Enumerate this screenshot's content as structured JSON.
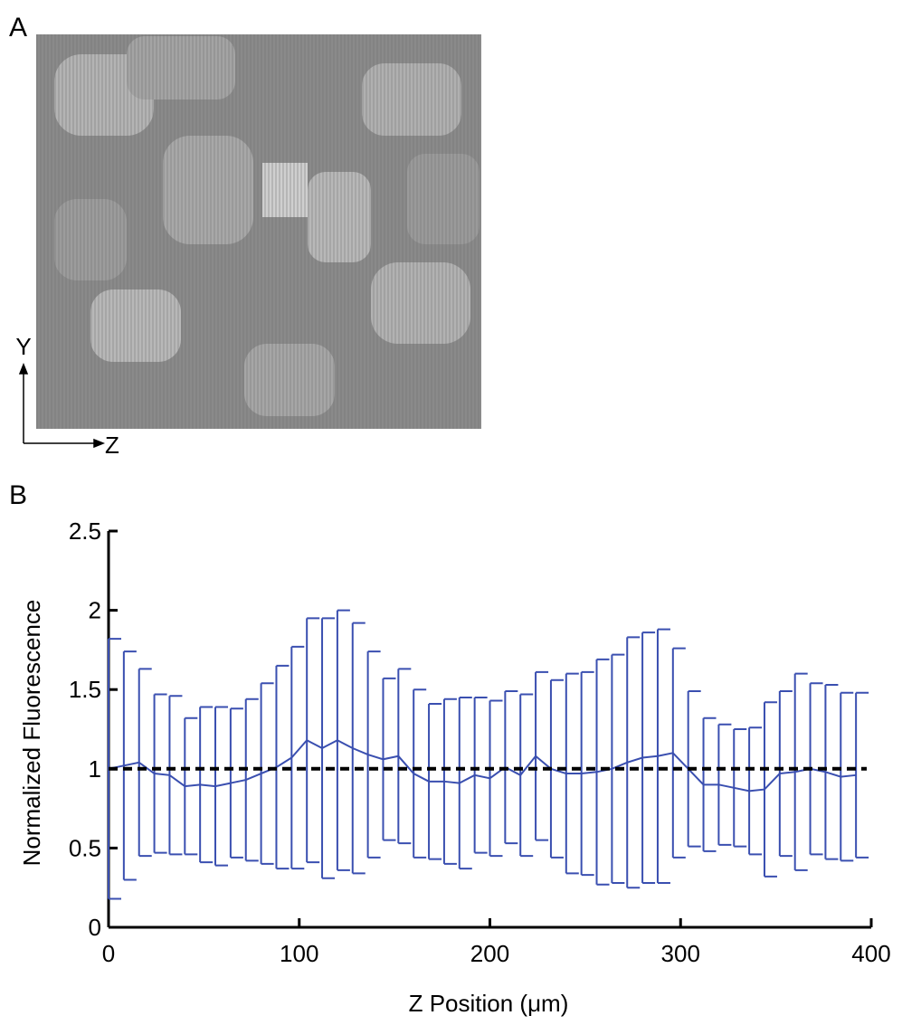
{
  "panel_labels": [
    "A",
    "B"
  ],
  "image": {
    "axis_y": "Y",
    "axis_z": "Z"
  },
  "chart_data": {
    "type": "errorbar",
    "xlabel": "Z Position (μm)",
    "ylabel": "Normalized Fluorescence",
    "x": [
      0,
      8,
      16,
      24,
      32,
      40,
      48,
      56,
      64,
      72,
      80,
      88,
      96,
      104,
      112,
      120,
      128,
      136,
      144,
      152,
      160,
      168,
      176,
      184,
      192,
      200,
      208,
      216,
      224,
      232,
      240,
      248,
      256,
      264,
      272,
      280,
      288,
      296,
      304,
      312,
      320,
      328,
      336,
      344,
      352,
      360,
      368,
      376,
      384,
      392
    ],
    "values": [
      1.0,
      1.02,
      1.04,
      0.97,
      0.96,
      0.89,
      0.9,
      0.89,
      0.91,
      0.93,
      0.97,
      1.01,
      1.07,
      1.18,
      1.13,
      1.18,
      1.13,
      1.09,
      1.06,
      1.08,
      0.97,
      0.92,
      0.92,
      0.91,
      0.96,
      0.94,
      1.01,
      0.96,
      1.08,
      1.0,
      0.97,
      0.97,
      0.98,
      1.0,
      1.04,
      1.07,
      1.08,
      1.1,
      1.0,
      0.9,
      0.9,
      0.88,
      0.86,
      0.87,
      0.97,
      0.98,
      1.0,
      0.98,
      0.95,
      0.96
    ],
    "errors": [
      0.82,
      0.72,
      0.59,
      0.5,
      0.5,
      0.43,
      0.49,
      0.5,
      0.47,
      0.51,
      0.57,
      0.64,
      0.7,
      0.77,
      0.82,
      0.82,
      0.79,
      0.65,
      0.51,
      0.55,
      0.53,
      0.49,
      0.52,
      0.54,
      0.49,
      0.49,
      0.48,
      0.51,
      0.53,
      0.56,
      0.63,
      0.64,
      0.71,
      0.72,
      0.79,
      0.79,
      0.8,
      0.66,
      0.49,
      0.42,
      0.38,
      0.37,
      0.4,
      0.55,
      0.52,
      0.62,
      0.54,
      0.55,
      0.53,
      0.52
    ],
    "color": "#3a4fb0",
    "reference_line": 1,
    "xlim": [
      0,
      400
    ],
    "xticks": [
      0,
      100,
      200,
      300,
      400
    ],
    "ylim": [
      0,
      2.5
    ],
    "yticks": [
      0,
      0.5,
      1,
      1.5,
      2,
      2.5
    ]
  }
}
